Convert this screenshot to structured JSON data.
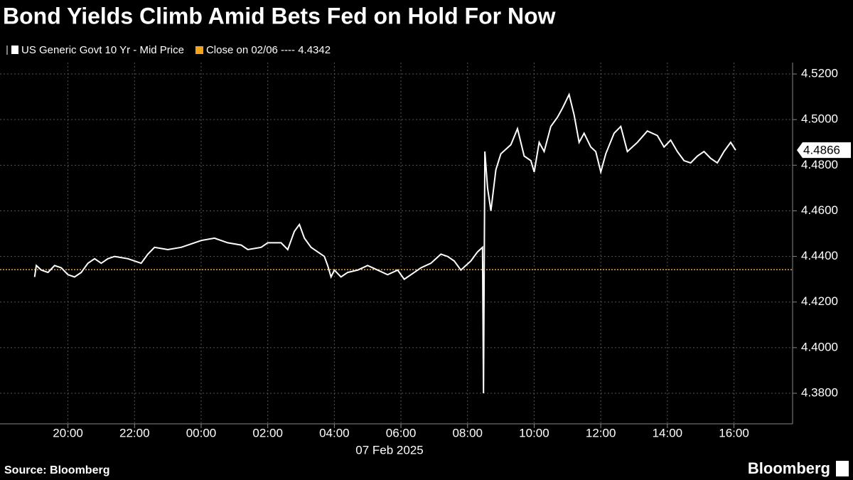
{
  "chart_data": {
    "type": "line",
    "title": "Bond Yields Climb Amid Bets Fed on Hold For Now",
    "x_axis_label": "07 Feb 2025",
    "source": "Source: Bloomberg",
    "brand": "Bloomberg",
    "xlim": [
      -6.04,
      17.76
    ],
    "xticks": [
      {
        "value": -4,
        "label": "20:00"
      },
      {
        "value": -2,
        "label": "22:00"
      },
      {
        "value": 0,
        "label": "00:00"
      },
      {
        "value": 2,
        "label": "02:00"
      },
      {
        "value": 4,
        "label": "04:00"
      },
      {
        "value": 6,
        "label": "06:00"
      },
      {
        "value": 8,
        "label": "08:00"
      },
      {
        "value": 10,
        "label": "10:00"
      },
      {
        "value": 12,
        "label": "12:00"
      },
      {
        "value": 14,
        "label": "14:00"
      },
      {
        "value": 16,
        "label": "16:00"
      }
    ],
    "ylim": [
      4.3666,
      4.525
    ],
    "yticks": [
      {
        "value": 4.38,
        "label": "4.3800"
      },
      {
        "value": 4.4,
        "label": "4.4000"
      },
      {
        "value": 4.42,
        "label": "4.4200"
      },
      {
        "value": 4.44,
        "label": "4.4400"
      },
      {
        "value": 4.46,
        "label": "4.4600"
      },
      {
        "value": 4.48,
        "label": "4.4800"
      },
      {
        "value": 4.5,
        "label": "4.5000"
      },
      {
        "value": 4.52,
        "label": "4.5200"
      }
    ],
    "grid": true,
    "x": [
      -5.0,
      -4.95,
      -4.8,
      -4.6,
      -4.4,
      -4.2,
      -4.0,
      -3.8,
      -3.6,
      -3.4,
      -3.2,
      -3.0,
      -2.8,
      -2.6,
      -2.2,
      -1.8,
      -1.6,
      -1.4,
      -1.0,
      -0.6,
      -0.2,
      0.0,
      0.4,
      0.8,
      1.2,
      1.4,
      1.8,
      2.0,
      2.4,
      2.6,
      2.8,
      2.95,
      3.1,
      3.3,
      3.5,
      3.7,
      3.8,
      3.9,
      4.0,
      4.2,
      4.4,
      4.7,
      5.0,
      5.3,
      5.6,
      5.9,
      6.1,
      6.3,
      6.6,
      6.9,
      7.2,
      7.4,
      7.6,
      7.8,
      8.1,
      8.3,
      8.45,
      8.48,
      8.52,
      8.6,
      8.7,
      8.85,
      9.0,
      9.3,
      9.5,
      9.7,
      9.9,
      10.0,
      10.15,
      10.3,
      10.5,
      10.7,
      10.85,
      11.05,
      11.2,
      11.35,
      11.5,
      11.7,
      11.85,
      12.0,
      12.15,
      12.4,
      12.6,
      12.8,
      13.1,
      13.4,
      13.7,
      13.9,
      14.1,
      14.3,
      14.5,
      14.7,
      14.9,
      15.1,
      15.3,
      15.5,
      15.7,
      15.9,
      16.05
    ],
    "series": [
      {
        "name": "US Generic Govt 10 Yr - Mid Price",
        "color": "#ffffff",
        "values": [
          4.431,
          4.436,
          4.434,
          4.433,
          4.436,
          4.435,
          4.432,
          4.431,
          4.433,
          4.437,
          4.439,
          4.437,
          4.439,
          4.44,
          4.439,
          4.437,
          4.441,
          4.444,
          4.443,
          4.444,
          4.446,
          4.447,
          4.448,
          4.446,
          4.445,
          4.443,
          4.444,
          4.446,
          4.446,
          4.443,
          4.451,
          4.454,
          4.448,
          4.444,
          4.442,
          4.44,
          4.436,
          4.431,
          4.434,
          4.431,
          4.433,
          4.434,
          4.436,
          4.434,
          4.432,
          4.434,
          4.43,
          4.432,
          4.435,
          4.437,
          4.441,
          4.44,
          4.438,
          4.434,
          4.438,
          4.442,
          4.444,
          4.38,
          4.486,
          4.47,
          4.46,
          4.478,
          4.485,
          4.489,
          4.496,
          4.484,
          4.482,
          4.477,
          4.49,
          4.486,
          4.497,
          4.501,
          4.505,
          4.511,
          4.502,
          4.49,
          4.494,
          4.488,
          4.486,
          4.477,
          4.485,
          4.494,
          4.497,
          4.486,
          4.49,
          4.495,
          4.493,
          4.488,
          4.491,
          4.486,
          4.482,
          4.481,
          4.484,
          4.486,
          4.483,
          4.481,
          4.486,
          4.49,
          4.4866
        ]
      }
    ],
    "reference_line": {
      "label": "Close on 02/06 ---- 4.4342",
      "value": 4.4342,
      "color": "#f5a31a"
    },
    "last_value": 4.4866
  }
}
